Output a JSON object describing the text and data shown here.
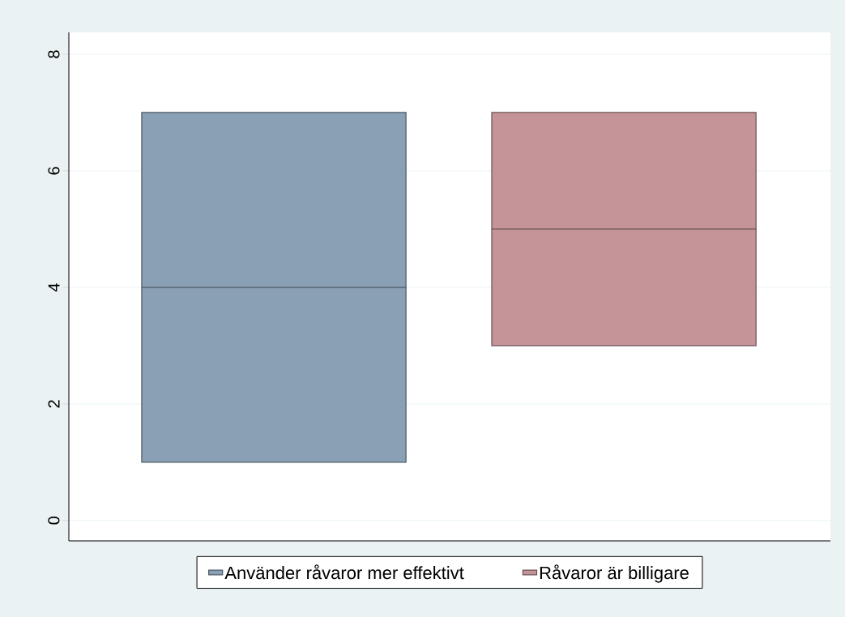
{
  "chart_data": {
    "type": "box",
    "categories": [
      null
    ],
    "ylim": [
      -0.35,
      8.375
    ],
    "yticks": [
      0,
      2,
      4,
      6,
      8
    ],
    "grid": "y",
    "legend": "bottom",
    "tick_labels": "y",
    "series": [
      {
        "name": "Använder råvaror mer effektivt",
        "color": "#8aa0b5",
        "boxes": [
          {
            "low": 1,
            "q1": 1,
            "median": 4,
            "q3": 7,
            "high": 7
          }
        ]
      },
      {
        "name": "Råvaror är billigare",
        "color": "#c49499",
        "boxes": [
          {
            "low": 3,
            "q1": 3,
            "median": 5,
            "q3": 7,
            "high": 7
          }
        ]
      }
    ]
  }
}
